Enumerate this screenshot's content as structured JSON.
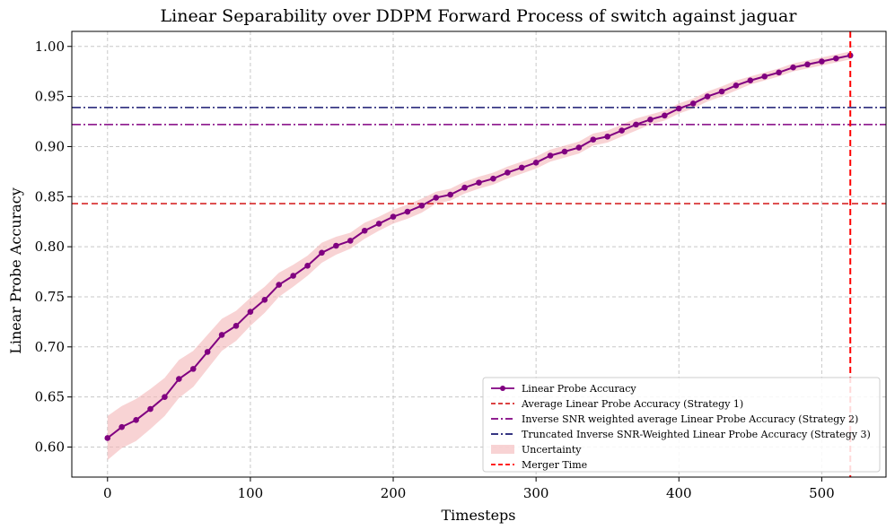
{
  "chart_data": {
    "type": "line",
    "title": "Linear Separability over DDPM Forward Process of switch against jaguar",
    "xlabel": "Timesteps",
    "ylabel": "Linear Probe Accuracy",
    "xlim": [
      -25,
      545
    ],
    "ylim": [
      0.57,
      1.015
    ],
    "xticks": [
      0,
      100,
      200,
      300,
      400,
      500
    ],
    "xtick_labels": [
      "0",
      "100",
      "200",
      "300",
      "400",
      "500"
    ],
    "yticks": [
      0.6,
      0.65,
      0.7,
      0.75,
      0.8,
      0.85,
      0.9,
      0.95,
      1.0
    ],
    "ytick_labels": [
      "0.60",
      "0.65",
      "0.70",
      "0.75",
      "0.80",
      "0.85",
      "0.90",
      "0.95",
      "1.00"
    ],
    "grid": true,
    "legend_position": "lower-right",
    "series": [
      {
        "name": "Linear Probe Accuracy",
        "color": "#800080",
        "x": [
          0,
          10,
          20,
          30,
          40,
          50,
          60,
          70,
          80,
          90,
          100,
          110,
          120,
          130,
          140,
          150,
          160,
          170,
          180,
          190,
          200,
          210,
          220,
          230,
          240,
          250,
          260,
          270,
          280,
          290,
          300,
          310,
          320,
          330,
          340,
          350,
          360,
          370,
          380,
          390,
          400,
          410,
          420,
          430,
          440,
          450,
          460,
          470,
          480,
          490,
          500,
          510,
          520
        ],
        "values": [
          0.609,
          0.62,
          0.627,
          0.638,
          0.65,
          0.668,
          0.678,
          0.695,
          0.712,
          0.721,
          0.735,
          0.747,
          0.762,
          0.771,
          0.781,
          0.794,
          0.801,
          0.806,
          0.816,
          0.823,
          0.83,
          0.835,
          0.841,
          0.849,
          0.852,
          0.859,
          0.864,
          0.868,
          0.874,
          0.879,
          0.884,
          0.891,
          0.895,
          0.899,
          0.907,
          0.91,
          0.916,
          0.922,
          0.927,
          0.931,
          0.938,
          0.943,
          0.95,
          0.955,
          0.961,
          0.966,
          0.97,
          0.974,
          0.979,
          0.982,
          0.985,
          0.988,
          0.991
        ],
        "uncertainty": [
          0.022,
          0.021,
          0.021,
          0.02,
          0.019,
          0.019,
          0.018,
          0.017,
          0.016,
          0.015,
          0.014,
          0.013,
          0.012,
          0.011,
          0.01,
          0.01,
          0.009,
          0.008,
          0.008,
          0.007,
          0.007,
          0.007,
          0.007,
          0.006,
          0.006,
          0.006,
          0.006,
          0.006,
          0.006,
          0.006,
          0.006,
          0.006,
          0.006,
          0.006,
          0.006,
          0.006,
          0.006,
          0.006,
          0.005,
          0.005,
          0.005,
          0.005,
          0.005,
          0.005,
          0.005,
          0.004,
          0.004,
          0.004,
          0.004,
          0.004,
          0.004,
          0.004,
          0.004
        ]
      }
    ],
    "hlines": [
      {
        "name": "Average Linear Probe Accuracy (Strategy 1)",
        "y": 0.843,
        "color": "#d62728",
        "style": "dashed"
      },
      {
        "name": "Inverse SNR weighted average Linear Probe Accuracy (Strategy 2)",
        "y": 0.922,
        "color": "#800080",
        "style": "dashdot"
      },
      {
        "name": "Truncated Inverse SNR-Weighted Linear Probe Accuracy (Strategy 3)",
        "y": 0.939,
        "color": "#191970",
        "style": "dashdot"
      }
    ],
    "vlines": [
      {
        "name": "Merger Time",
        "x": 520,
        "color": "#ff0000",
        "style": "dashed"
      }
    ],
    "band": {
      "name": "Uncertainty",
      "color": "#f4b6b8"
    },
    "legend": [
      "Linear Probe Accuracy",
      "Average Linear Probe Accuracy (Strategy 1)",
      "Inverse SNR weighted average Linear Probe Accuracy (Strategy 2)",
      "Truncated Inverse SNR-Weighted Linear Probe Accuracy (Strategy 3)",
      "Uncertainty",
      "Merger Time"
    ]
  }
}
